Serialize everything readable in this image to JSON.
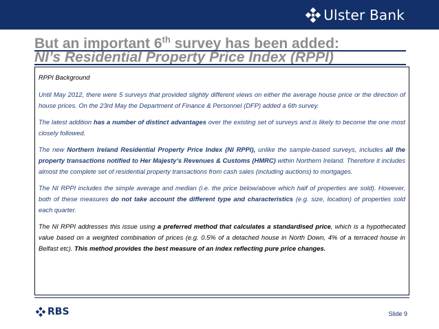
{
  "header": {
    "brand": "Ulster Bank",
    "brand_icon": "daisy-wheel-icon",
    "background": "#13306a"
  },
  "title": {
    "line1_pre": "But an important 6",
    "line1_sup": "th",
    "line1_post": " survey has been added:",
    "line2": "NI’s Residential Property Price Index (RPPI)"
  },
  "content": {
    "heading": "RPPI Background",
    "p1": "Until May 2012, there were 5 surveys that provided slightly different views on either the average house price or the direction of house prices.  On the 23rd May the Department of Finance & Personnel (DFP) added a 6th survey.",
    "p2a": "The latest addition ",
    "p2b": "has a number of distinct advantages",
    "p2c": " over the existing set of surveys and is likely to become the one most closely followed.",
    "p3a": "The new ",
    "p3b": "Northern Ireland Residential Property Price Index (NI RPPI),",
    "p3c": " unlike the sample-based surveys, includes ",
    "p3d": "all the property transactions notified to Her Majesty’s Revenues & Customs (HMRC)",
    "p3e": " within Northern Ireland. Therefore it includes almost the complete set of residential property transactions from cash sales (including auctions) to mortgages.",
    "p4a": "The NI RPPI includes the simple average and median (i.e. the price below/above which half of properties are sold). However, both of these measures ",
    "p4b": "do not take account the different type and characteristics",
    "p4c": " (e.g. size, location) of properties sold each quarter.",
    "p5a": "The NI RPPI addresses this issue using ",
    "p5b": "a preferred method that calculates a standardised price",
    "p5c": ", which is a hypothecated value based on a weighted combination of prices (e.g. 0.5% of a detached house in North Down, 4% of a terraced house in Belfast etc).  ",
    "p5d": "This method provides the best measure of an index reflecting pure price changes."
  },
  "footer": {
    "logo": "RBS",
    "logo_icon": "daisy-wheel-icon",
    "slide_label": "Slide 9"
  }
}
